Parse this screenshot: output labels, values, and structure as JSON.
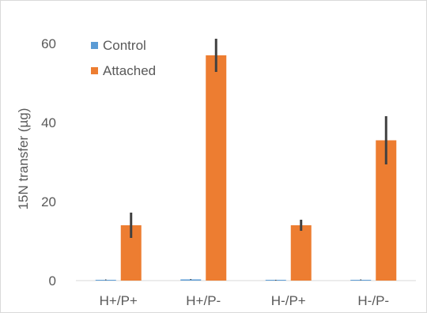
{
  "chart_data": {
    "type": "bar",
    "categories": [
      "H+/P+",
      "H+/P-",
      "H-/P+",
      "H-/P-"
    ],
    "series": [
      {
        "name": "Control",
        "color": "#5b9bd5",
        "values": [
          0.2,
          0.3,
          0.1,
          0.2
        ],
        "errors": [
          0.1,
          0.1,
          0.1,
          0.1
        ]
      },
      {
        "name": "Attached",
        "color": "#ed7d31",
        "values": [
          14,
          57,
          14,
          35.5
        ],
        "errors": [
          3.2,
          4.2,
          1.4,
          6.1
        ]
      }
    ],
    "title": "",
    "xlabel": "",
    "ylabel": "15N transfer (µg)",
    "ylim": [
      0,
      60
    ],
    "yticks": [
      "0",
      "20",
      "40",
      "60"
    ],
    "ytick_values": [
      0,
      20,
      40,
      60
    ],
    "grid": false,
    "legend": "top-left",
    "error_bar_color": "#404040",
    "axis_color": "#d9d9d9"
  }
}
